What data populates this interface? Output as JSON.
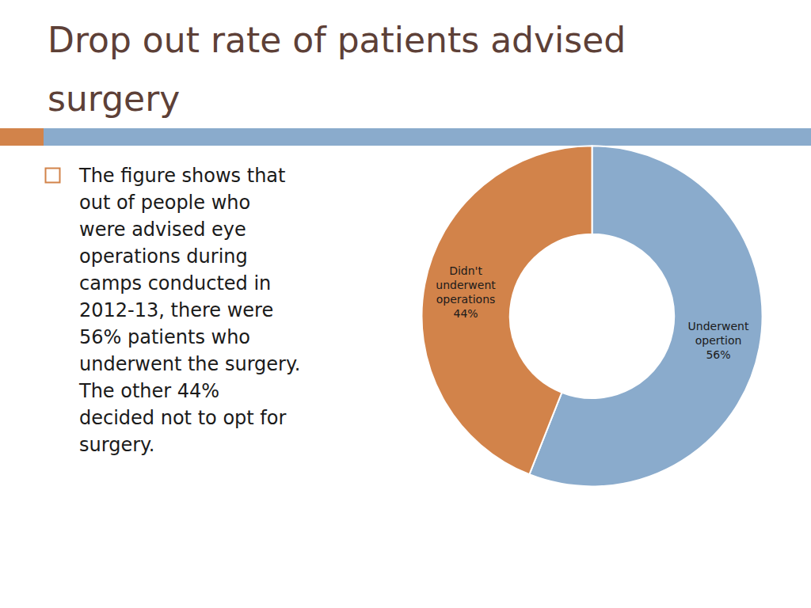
{
  "chart_data": {
    "type": "pie",
    "title": "Drop out rate of patients advised\nsurgery",
    "categories": [
      "Underwent\nopertion",
      "Didn't\nunderwent\noperations"
    ],
    "values": [
      56,
      44
    ],
    "value_labels": [
      "56%",
      "44%"
    ],
    "data_labels": true,
    "colors": [
      "#8aabcc",
      "#d2834a"
    ],
    "annotations": [
      "The figure shows that",
      "out of people who",
      "were advised eye",
      "operations during",
      "camps conducted in",
      "2012-13, there were",
      "56% patients who",
      "underwent the surgery.",
      "The other 44%",
      "decided not to opt for",
      "surgery."
    ]
  }
}
